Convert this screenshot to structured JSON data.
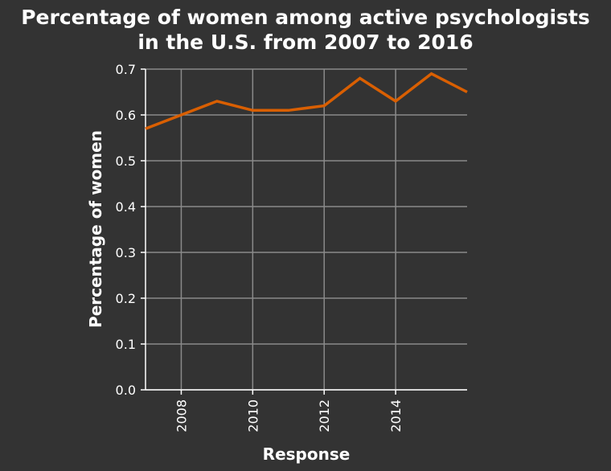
{
  "chart_data": {
    "type": "line",
    "title_lines": [
      "Percentage of women among active psychologists",
      "in the U.S. from 2007 to 2016"
    ],
    "xlabel": "Response",
    "ylabel": "Percentage of women",
    "xlim": [
      2007,
      2016
    ],
    "ylim": [
      0,
      0.7
    ],
    "xticks": [
      2008,
      2010,
      2012,
      2014
    ],
    "xtick_labels": [
      "2008",
      "2010",
      "2012",
      "2014"
    ],
    "yticks": [
      0,
      0.1,
      0.2,
      0.3,
      0.4,
      0.5,
      0.6,
      0.7
    ],
    "ytick_labels": [
      "0.0",
      "0.1",
      "0.2",
      "0.3",
      "0.4",
      "0.5",
      "0.6",
      "0.7"
    ],
    "grid": true,
    "series": [
      {
        "color": "#d95f02",
        "x": [
          2007,
          2008,
          2009,
          2010,
          2011,
          2012,
          2013,
          2014,
          2015,
          2016
        ],
        "y": [
          0.57,
          0.6,
          0.63,
          0.61,
          0.61,
          0.62,
          0.68,
          0.63,
          0.69,
          0.65
        ]
      }
    ]
  }
}
